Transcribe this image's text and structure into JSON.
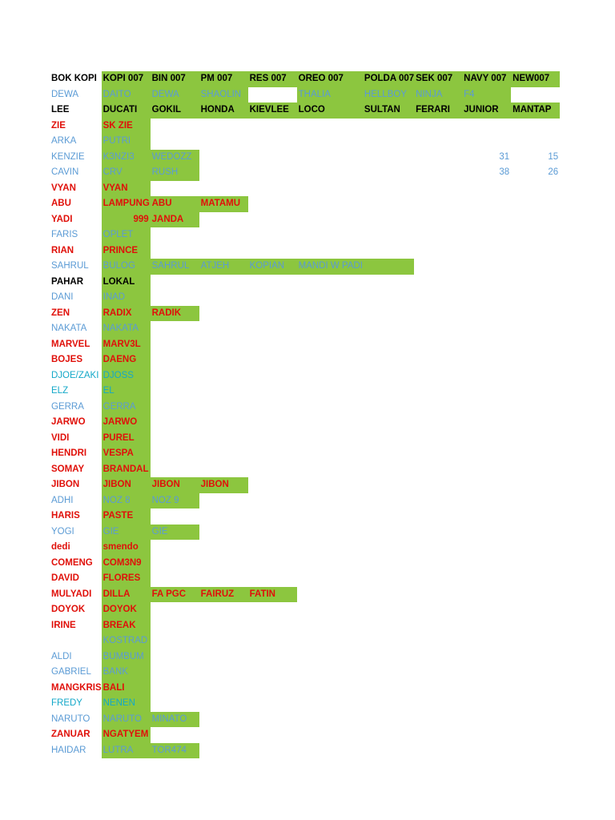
{
  "columns": [
    "name",
    "c1",
    "c2",
    "c3",
    "c4",
    "c5",
    "c6",
    "c7",
    "c8",
    "c9"
  ],
  "rows": [
    {
      "cells": [
        {
          "t": "BOK KOPI",
          "c": "black"
        },
        {
          "t": "KOPI 007",
          "c": "black",
          "g": true
        },
        {
          "t": "BIN 007",
          "c": "black",
          "g": true
        },
        {
          "t": "PM 007",
          "c": "black",
          "g": true
        },
        {
          "t": "RES 007",
          "c": "black",
          "g": true
        },
        {
          "t": "OREO 007",
          "c": "black",
          "g": true
        },
        {
          "t": "POLDA 007",
          "c": "black",
          "g": true
        },
        {
          "t": "SEK 007",
          "c": "black",
          "g": true
        },
        {
          "t": "NAVY 007",
          "c": "black",
          "g": true
        },
        {
          "t": "NEW007",
          "c": "black",
          "g": true
        }
      ]
    },
    {
      "cells": [
        {
          "t": "DEWA",
          "c": "blue"
        },
        {
          "t": "DAITO",
          "c": "blue",
          "g": true
        },
        {
          "t": "DEWA",
          "c": "blue",
          "g": true
        },
        {
          "t": "SHAOLIN",
          "c": "blue",
          "g": true
        },
        {
          "t": "",
          "c": "blue"
        },
        {
          "t": "THALIA",
          "c": "blue",
          "g": true
        },
        {
          "t": "HELLBOY",
          "c": "blue",
          "g": true
        },
        {
          "t": "NINJA",
          "c": "blue",
          "g": true
        },
        {
          "t": "F4",
          "c": "blue",
          "g": true
        },
        {
          "t": "",
          "c": "blue"
        }
      ]
    },
    {
      "cells": [
        {
          "t": "LEE",
          "c": "black"
        },
        {
          "t": "DUCATI",
          "c": "black",
          "g": true
        },
        {
          "t": "GOKIL",
          "c": "black",
          "g": true
        },
        {
          "t": "HONDA",
          "c": "black",
          "g": true
        },
        {
          "t": "KIEVLEE",
          "c": "black",
          "g": true
        },
        {
          "t": "LOCO",
          "c": "black",
          "g": true
        },
        {
          "t": "SULTAN",
          "c": "black",
          "g": true
        },
        {
          "t": "FERARI",
          "c": "black",
          "g": true
        },
        {
          "t": "JUNIOR",
          "c": "black",
          "g": true
        },
        {
          "t": "MANTAP",
          "c": "black",
          "g": true
        }
      ]
    },
    {
      "cells": [
        {
          "t": "ZIE",
          "c": "red"
        },
        {
          "t": "SK ZIE",
          "c": "red",
          "g": true
        }
      ]
    },
    {
      "cells": [
        {
          "t": "ARKA",
          "c": "blue"
        },
        {
          "t": "PUTRI",
          "c": "blue",
          "g": true
        }
      ]
    },
    {
      "cells": [
        {
          "t": "KENZIE",
          "c": "blue"
        },
        {
          "t": "K3NZI3",
          "c": "blue",
          "g": true
        },
        {
          "t": "WEDOZZ",
          "c": "blue",
          "g": true
        },
        {
          "t": ""
        },
        {
          "t": ""
        },
        {
          "t": ""
        },
        {
          "t": ""
        },
        {
          "t": ""
        },
        {
          "t": "31",
          "c": "blue",
          "n": true
        },
        {
          "t": "15",
          "c": "blue",
          "n": true
        }
      ]
    },
    {
      "cells": [
        {
          "t": "CAVIN",
          "c": "blue"
        },
        {
          "t": "CRV",
          "c": "blue",
          "g": true
        },
        {
          "t": "RUSH",
          "c": "blue",
          "g": true
        },
        {
          "t": ""
        },
        {
          "t": ""
        },
        {
          "t": ""
        },
        {
          "t": ""
        },
        {
          "t": ""
        },
        {
          "t": "38",
          "c": "blue",
          "n": true
        },
        {
          "t": "26",
          "c": "blue",
          "n": true
        }
      ]
    },
    {
      "cells": [
        {
          "t": "VYAN",
          "c": "red"
        },
        {
          "t": "VYAN",
          "c": "red",
          "g": true
        }
      ]
    },
    {
      "cells": [
        {
          "t": "ABU",
          "c": "red"
        },
        {
          "t": "LAMPUNG",
          "c": "red",
          "g": true
        },
        {
          "t": "ABU",
          "c": "red",
          "g": true
        },
        {
          "t": "MATAMU",
          "c": "red",
          "g": true
        }
      ]
    },
    {
      "cells": [
        {
          "t": "YADI",
          "c": "red"
        },
        {
          "t": "999",
          "c": "red",
          "g": true,
          "n": true
        },
        {
          "t": "JANDA",
          "c": "red",
          "g": true
        }
      ]
    },
    {
      "cells": [
        {
          "t": "FARIS",
          "c": "blue"
        },
        {
          "t": "OPLET",
          "c": "blue",
          "g": true
        }
      ]
    },
    {
      "cells": [
        {
          "t": "RIAN",
          "c": "red"
        },
        {
          "t": "PRINCE",
          "c": "red",
          "g": true
        }
      ]
    },
    {
      "cells": [
        {
          "t": "SAHRUL",
          "c": "blue"
        },
        {
          "t": "BULOG",
          "c": "blue",
          "g": true
        },
        {
          "t": "SAHRUL",
          "c": "blue",
          "g": true
        },
        {
          "t": "ATJEH",
          "c": "blue",
          "g": true
        },
        {
          "t": "KOPIAN",
          "c": "blue",
          "g": true
        },
        {
          "t": "MANDI W PADI",
          "c": "blue",
          "g": true
        },
        {
          "t": "",
          "g": true
        }
      ]
    },
    {
      "cells": [
        {
          "t": "PAHAR",
          "c": "black"
        },
        {
          "t": "LOKAL",
          "c": "black",
          "g": true
        }
      ]
    },
    {
      "cells": [
        {
          "t": "DANI",
          "c": "blue"
        },
        {
          "t": "INAD",
          "c": "blue",
          "g": true
        }
      ]
    },
    {
      "cells": [
        {
          "t": "ZEN",
          "c": "red"
        },
        {
          "t": "RADIX",
          "c": "red",
          "g": true
        },
        {
          "t": "RADIK",
          "c": "red",
          "g": true
        }
      ]
    },
    {
      "cells": [
        {
          "t": "NAKATA",
          "c": "blue"
        },
        {
          "t": "NAKATA",
          "c": "blue",
          "g": true
        }
      ]
    },
    {
      "cells": [
        {
          "t": "MARVEL",
          "c": "red"
        },
        {
          "t": "MARV3L",
          "c": "red",
          "g": true
        }
      ]
    },
    {
      "cells": [
        {
          "t": "BOJES",
          "c": "red"
        },
        {
          "t": "DAENG",
          "c": "red",
          "g": true
        }
      ]
    },
    {
      "cells": [
        {
          "t": "DJOE/ZAKI",
          "c": "cyan"
        },
        {
          "t": "DJOSS",
          "c": "cyan",
          "g": true
        }
      ]
    },
    {
      "cells": [
        {
          "t": "ELZ",
          "c": "cyan"
        },
        {
          "t": "EL",
          "c": "cyan",
          "g": true
        }
      ]
    },
    {
      "cells": [
        {
          "t": "GERRA",
          "c": "blue"
        },
        {
          "t": "GERRA",
          "c": "blue",
          "g": true
        }
      ]
    },
    {
      "cells": [
        {
          "t": "JARWO",
          "c": "red"
        },
        {
          "t": "JARWO",
          "c": "red",
          "g": true
        }
      ]
    },
    {
      "cells": [
        {
          "t": "VIDI",
          "c": "red"
        },
        {
          "t": "PUREL",
          "c": "red",
          "g": true
        }
      ]
    },
    {
      "cells": [
        {
          "t": "HENDRI",
          "c": "red"
        },
        {
          "t": "VESPA",
          "c": "red",
          "g": true
        }
      ]
    },
    {
      "cells": [
        {
          "t": "SOMAY",
          "c": "red"
        },
        {
          "t": "BRANDAL",
          "c": "red",
          "g": true
        }
      ]
    },
    {
      "cells": [
        {
          "t": "JIBON",
          "c": "red"
        },
        {
          "t": "JIBON",
          "c": "red",
          "g": true
        },
        {
          "t": "JIBON",
          "c": "red",
          "g": true
        },
        {
          "t": "JIBON",
          "c": "red",
          "g": true
        }
      ]
    },
    {
      "cells": [
        {
          "t": "ADHI",
          "c": "blue"
        },
        {
          "t": "NOZ 8",
          "c": "blue",
          "g": true
        },
        {
          "t": "NOZ 9",
          "c": "blue",
          "g": true
        }
      ]
    },
    {
      "cells": [
        {
          "t": "HARIS",
          "c": "red"
        },
        {
          "t": "PASTE",
          "c": "red",
          "g": true
        }
      ]
    },
    {
      "cells": [
        {
          "t": "YOGI",
          "c": "blue"
        },
        {
          "t": "GIE",
          "c": "blue",
          "g": true
        },
        {
          "t": "GIE",
          "c": "blue",
          "g": true
        }
      ]
    },
    {
      "cells": [
        {
          "t": "dedi",
          "c": "red"
        },
        {
          "t": "smendo",
          "c": "red",
          "g": true
        }
      ]
    },
    {
      "cells": [
        {
          "t": "COMENG",
          "c": "red"
        },
        {
          "t": "COM3N9",
          "c": "red",
          "g": true
        }
      ]
    },
    {
      "cells": [
        {
          "t": "DAVID",
          "c": "red"
        },
        {
          "t": "FLORES",
          "c": "red",
          "g": true
        }
      ]
    },
    {
      "cells": [
        {
          "t": "MULYADI",
          "c": "red"
        },
        {
          "t": "DILLA",
          "c": "red",
          "g": true
        },
        {
          "t": "FA PGC",
          "c": "red",
          "g": true
        },
        {
          "t": "FAIRUZ",
          "c": "red",
          "g": true
        },
        {
          "t": "FATIN",
          "c": "red",
          "g": true
        }
      ]
    },
    {
      "cells": [
        {
          "t": "DOYOK",
          "c": "red"
        },
        {
          "t": "DOYOK",
          "c": "red",
          "g": true
        }
      ]
    },
    {
      "cells": [
        {
          "t": "IRINE",
          "c": "red"
        },
        {
          "t": "BREAK",
          "c": "red",
          "g": true
        }
      ]
    },
    {
      "cells": [
        {
          "t": "",
          "c": "blue"
        },
        {
          "t": "KOSTRAD",
          "c": "blue",
          "g": true
        }
      ]
    },
    {
      "cells": [
        {
          "t": "ALDI",
          "c": "blue"
        },
        {
          "t": "BUMBUM",
          "c": "blue",
          "g": true
        }
      ]
    },
    {
      "cells": [
        {
          "t": "GABRIEL",
          "c": "blue"
        },
        {
          "t": "BANK",
          "c": "blue",
          "g": true
        }
      ]
    },
    {
      "cells": [
        {
          "t": "MANGKRIS",
          "c": "red"
        },
        {
          "t": "BALI",
          "c": "red",
          "g": true
        }
      ]
    },
    {
      "cells": [
        {
          "t": "FREDY",
          "c": "cyan"
        },
        {
          "t": "NENEN",
          "c": "cyan",
          "g": true
        }
      ]
    },
    {
      "cells": [
        {
          "t": "NARUTO",
          "c": "blue"
        },
        {
          "t": "NARUTO",
          "c": "blue",
          "g": true
        },
        {
          "t": "MINATO",
          "c": "blue",
          "g": true
        }
      ]
    },
    {
      "cells": [
        {
          "t": "ZANUAR",
          "c": "red"
        },
        {
          "t": "NGATYEM",
          "c": "red",
          "g": true
        }
      ]
    },
    {
      "cells": [
        {
          "t": "HAIDAR",
          "c": "blue"
        },
        {
          "t": "LUTRA",
          "c": "blue",
          "g": true
        },
        {
          "t": "TOR474",
          "c": "blue",
          "g": true
        }
      ]
    }
  ]
}
